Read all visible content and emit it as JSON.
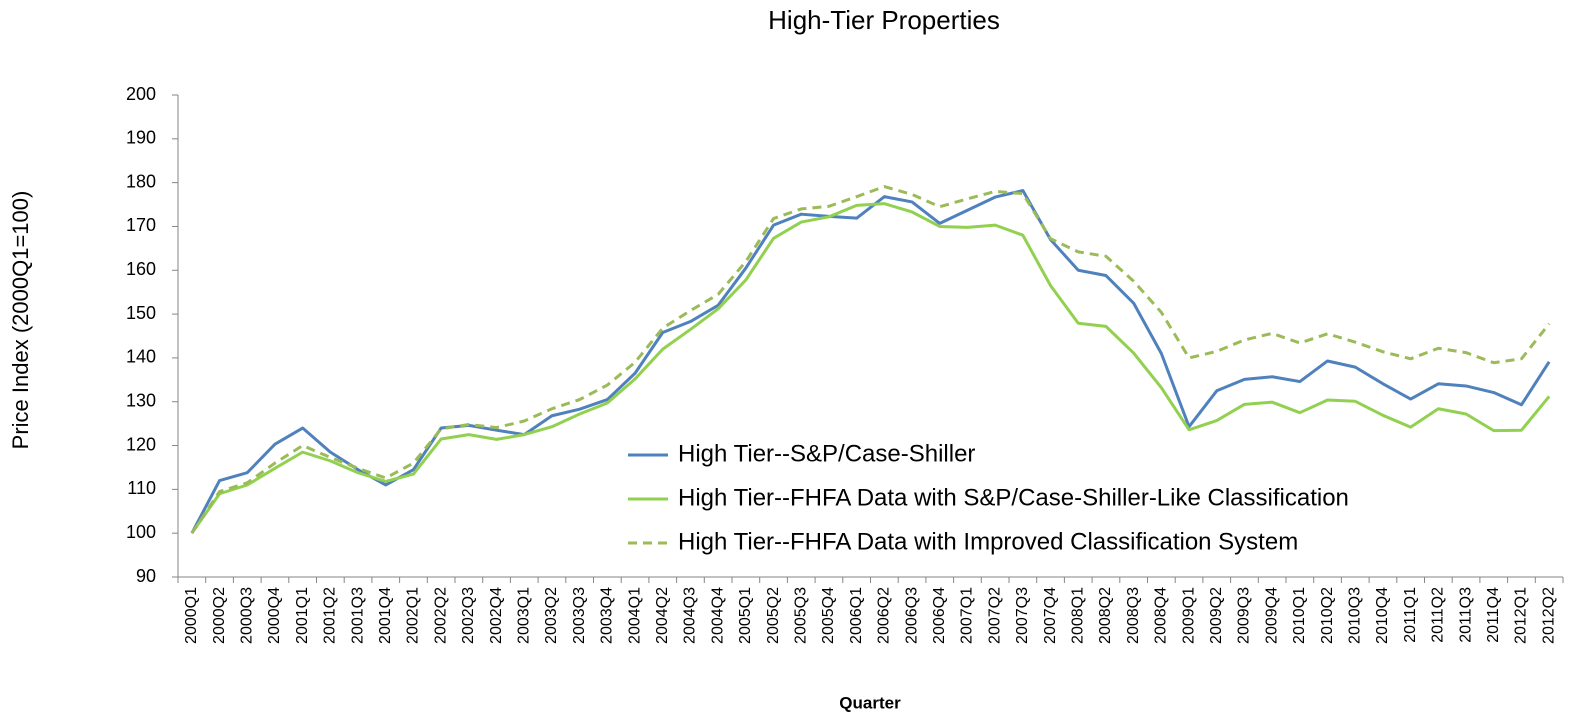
{
  "chart_data": {
    "type": "line",
    "title": "High-Tier Properties",
    "x_label": "Quarter",
    "y_label": "Price Index  (2000Q1=100)",
    "categories": [
      "2000Q1",
      "2000Q2",
      "2000Q3",
      "2000Q4",
      "2001Q1",
      "2001Q2",
      "2001Q3",
      "2001Q4",
      "2002Q1",
      "2002Q2",
      "2002Q3",
      "2002Q4",
      "2003Q1",
      "2003Q2",
      "2003Q3",
      "2003Q4",
      "2004Q1",
      "2004Q2",
      "2004Q3",
      "2004Q4",
      "2005Q1",
      "2005Q2",
      "2005Q3",
      "2005Q4",
      "2006Q1",
      "2006Q2",
      "2006Q3",
      "2006Q4",
      "2007Q1",
      "2007Q2",
      "2007Q3",
      "2007Q4",
      "2008Q1",
      "2008Q2",
      "2008Q3",
      "2008Q4",
      "2009Q1",
      "2009Q2",
      "2009Q3",
      "2009Q4",
      "2010Q1",
      "2010Q2",
      "2010Q3",
      "2010Q4",
      "2011Q1",
      "2011Q2",
      "2011Q3",
      "2011Q4",
      "2012Q1",
      "2012Q2"
    ],
    "series": [
      {
        "name": "High Tier--S&P/Case-Shiller",
        "color": "#4f81bd",
        "dashed": false,
        "values": [
          100,
          112,
          113.8,
          120.3,
          124,
          118.5,
          114.5,
          111,
          114.5,
          124,
          124.6,
          123.5,
          122.5,
          126.8,
          128.3,
          130.5,
          136.5,
          145.8,
          148.3,
          152,
          160.5,
          170.3,
          172.8,
          172.3,
          171.9,
          176.8,
          175.6,
          170.7,
          173.7,
          176.7,
          178.2,
          167,
          160,
          158.8,
          152.5,
          141,
          124.3,
          132.5,
          135.1,
          135.7,
          134.6,
          139.3,
          137.9,
          134.1,
          130.6,
          134.1,
          133.6,
          132.1,
          129.3,
          139.1
        ]
      },
      {
        "name": "High Tier--FHFA Data with S&P/Case-Shiller-Like Classification",
        "color": "#92d050",
        "dashed": false,
        "values": [
          100,
          109,
          111,
          114.8,
          118.5,
          116.5,
          113.8,
          111.8,
          113.5,
          121.5,
          122.5,
          121.4,
          122.5,
          124.3,
          127.2,
          129.7,
          135.2,
          142,
          146.5,
          151.2,
          157.8,
          167.3,
          171,
          172.2,
          174.8,
          175.2,
          173.3,
          170,
          169.8,
          170.3,
          168,
          156.5,
          147.9,
          147.2,
          141.1,
          133.2,
          123.6,
          125.7,
          129.4,
          129.9,
          127.5,
          130.4,
          130.1,
          126.9,
          124.2,
          128.4,
          127.2,
          123.4,
          123.5,
          131.2
        ]
      },
      {
        "name": "High Tier--FHFA Data with Improved Classification System",
        "color": "#9bbb59",
        "dashed": true,
        "values": [
          100,
          109.5,
          111.5,
          116,
          120,
          117.3,
          114.8,
          112.6,
          116,
          123.8,
          124.8,
          124.1,
          125.6,
          128.4,
          130.5,
          133.8,
          139,
          146.8,
          150.8,
          154.5,
          162,
          171.8,
          174,
          174.6,
          176.8,
          179.1,
          177.3,
          174.5,
          176.3,
          178,
          177.5,
          167.2,
          164.2,
          163.2,
          157.5,
          150.4,
          140,
          141.5,
          144.1,
          145.6,
          143.4,
          145.5,
          143.6,
          141.4,
          139.8,
          142.2,
          141.2,
          138.9,
          139.8,
          147.8
        ]
      }
    ],
    "ylim": [
      90,
      200
    ],
    "yticks": [
      90,
      100,
      110,
      120,
      130,
      140,
      150,
      160,
      170,
      180,
      190,
      200
    ],
    "grid": false,
    "legend_position": "center"
  }
}
